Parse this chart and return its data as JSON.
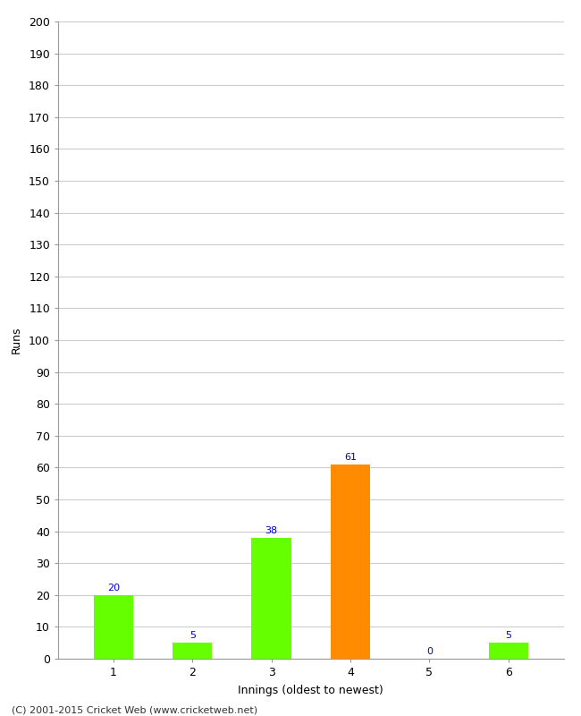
{
  "categories": [
    "1",
    "2",
    "3",
    "4",
    "5",
    "6"
  ],
  "values": [
    20,
    5,
    38,
    61,
    0,
    5
  ],
  "bar_colors": [
    "#66ff00",
    "#66ff00",
    "#66ff00",
    "#ff8c00",
    "#66ff00",
    "#66ff00"
  ],
  "ylabel": "Runs",
  "xlabel": "Innings (oldest to newest)",
  "ylim": [
    0,
    200
  ],
  "yticks": [
    0,
    10,
    20,
    30,
    40,
    50,
    60,
    70,
    80,
    90,
    100,
    110,
    120,
    130,
    140,
    150,
    160,
    170,
    180,
    190,
    200
  ],
  "label_color": "#0000cc",
  "label_fontsize": 8,
  "footer": "(C) 2001-2015 Cricket Web (www.cricketweb.net)",
  "background_color": "#ffffff",
  "grid_color": "#cccccc",
  "bar_width": 0.5
}
